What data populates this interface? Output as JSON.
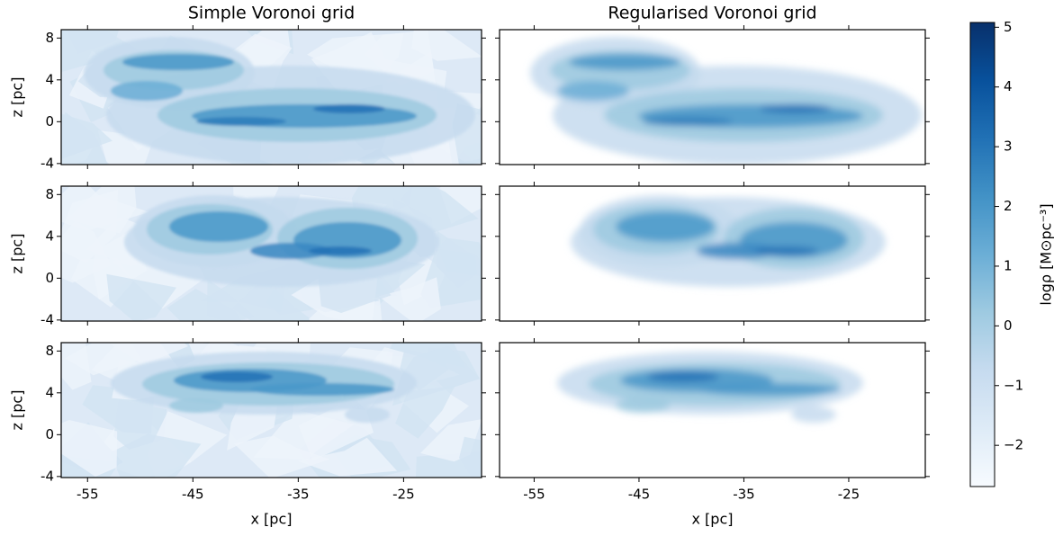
{
  "chart_data": [
    {
      "type": "image",
      "title": "Simple Voronoi grid",
      "ylabel": "z [pc]",
      "xlim": [
        -57.5,
        -17.6
      ],
      "ylim": [
        -4.1,
        8.8
      ],
      "xticks": [
        -55,
        -45,
        -35,
        -25
      ],
      "yticks": [
        -4,
        0,
        4,
        8
      ]
    },
    {
      "type": "image",
      "title": "Regularised Voronoi grid",
      "xlim": [
        -58.3,
        -17.7
      ],
      "ylim": [
        -4.1,
        8.8
      ],
      "xticks": [
        -55,
        -45,
        -35,
        -25
      ],
      "yticks": [
        -4,
        0,
        4,
        8
      ]
    },
    {
      "type": "image",
      "ylabel": "z [pc]",
      "xlim": [
        -57.5,
        -17.6
      ],
      "ylim": [
        -4.1,
        8.8
      ],
      "xticks": [
        -55,
        -45,
        -35,
        -25
      ],
      "yticks": [
        -4,
        0,
        4,
        8
      ]
    },
    {
      "type": "image",
      "xlim": [
        -58.3,
        -17.7
      ],
      "ylim": [
        -4.1,
        8.8
      ],
      "xticks": [
        -55,
        -45,
        -35,
        -25
      ],
      "yticks": [
        -4,
        0,
        4,
        8
      ]
    },
    {
      "type": "image",
      "ylabel": "z [pc]",
      "xlabel": "x [pc]",
      "xlim": [
        -57.5,
        -17.6
      ],
      "ylim": [
        -4.1,
        8.8
      ],
      "xticks": [
        -55,
        -45,
        -35,
        -25
      ],
      "yticks": [
        -4,
        0,
        4,
        8
      ]
    },
    {
      "type": "image",
      "xlabel": "x [pc]",
      "xlim": [
        -58.3,
        -17.7
      ],
      "ylim": [
        -4.1,
        8.8
      ],
      "xticks": [
        -55,
        -45,
        -35,
        -25
      ],
      "yticks": [
        -4,
        0,
        4,
        8
      ]
    },
    {
      "type": "colorbar",
      "label": "logρ [M⊙pc⁻³]",
      "colormap": "Blues",
      "ylim": [
        -2.69,
        5.08
      ],
      "yticks": [
        {
          "value": -2,
          "label": "−2"
        },
        {
          "value": -1,
          "label": "−1"
        },
        0,
        1,
        2,
        3,
        4,
        5
      ]
    }
  ]
}
